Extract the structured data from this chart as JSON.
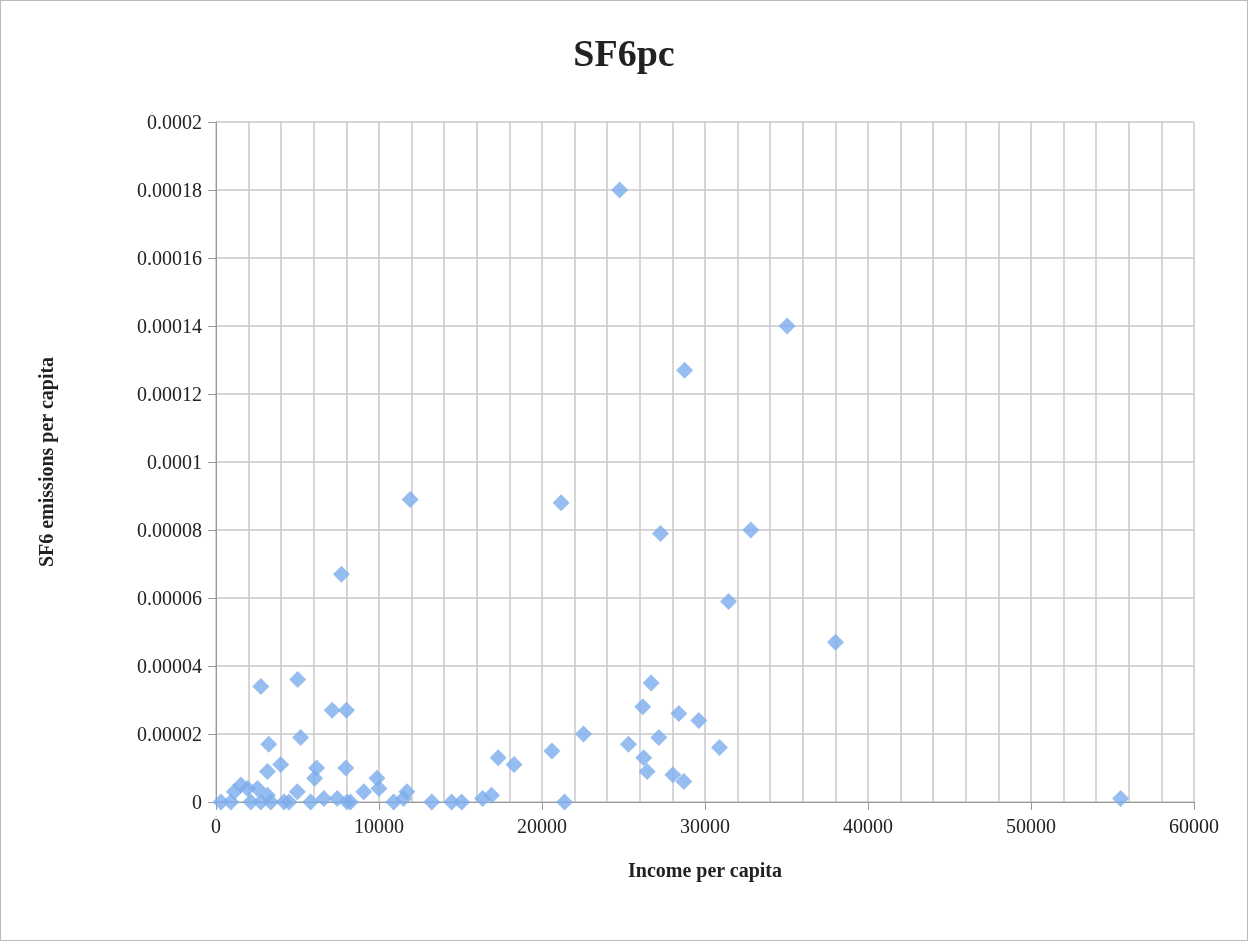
{
  "chart_data": {
    "type": "scatter",
    "title": "SF6pc",
    "xlabel": "Income per capita",
    "ylabel": "SF6 emissions per capita",
    "xlim": [
      0,
      60000
    ],
    "xticks": [
      0,
      {
        "value": 2000,
        "label": null
      },
      {
        "value": 4000,
        "label": null
      },
      {
        "value": 6000,
        "label": null
      },
      {
        "value": 8000,
        "label": null
      },
      10000,
      {
        "value": 12000,
        "label": null
      },
      {
        "value": 14000,
        "label": null
      },
      {
        "value": 16000,
        "label": null
      },
      {
        "value": 18000,
        "label": null
      },
      20000,
      {
        "value": 22000,
        "label": null
      },
      {
        "value": 24000,
        "label": null
      },
      {
        "value": 26000,
        "label": null
      },
      {
        "value": 28000,
        "label": null
      },
      30000,
      {
        "value": 32000,
        "label": null
      },
      {
        "value": 34000,
        "label": null
      },
      {
        "value": 36000,
        "label": null
      },
      {
        "value": 38000,
        "label": null
      },
      40000,
      {
        "value": 42000,
        "label": null
      },
      {
        "value": 44000,
        "label": null
      },
      {
        "value": 46000,
        "label": null
      },
      {
        "value": 48000,
        "label": null
      },
      50000,
      {
        "value": 52000,
        "label": null
      },
      {
        "value": 54000,
        "label": null
      },
      {
        "value": 56000,
        "label": null
      },
      {
        "value": 58000,
        "label": null
      },
      60000
    ],
    "ylim": [
      0,
      0.0002
    ],
    "yticks": [
      0,
      {
        "value": 2e-05,
        "label": "0.00002"
      },
      {
        "value": 4e-05,
        "label": "0.00004"
      },
      {
        "value": 6e-05,
        "label": "0.00006"
      },
      {
        "value": 8e-05,
        "label": "0.00008"
      },
      0.0001,
      0.00012,
      0.00014,
      0.00016,
      0.00018,
      0.0002
    ],
    "grid": true,
    "marker": "diamond",
    "series": [
      {
        "color": "#7cacec",
        "x": [
          24766,
          35040,
          28750,
          11914,
          7695,
          21172,
          27266,
          32812,
          31445,
          38008,
          55500,
          2749,
          5010,
          7128,
          8004,
          5193,
          3238,
          3971,
          3157,
          6171,
          6049,
          7963,
          9878,
          10000,
          17312,
          18289,
          20611,
          22546,
          21385,
          16904,
          16354,
          15071,
          14460,
          13238,
          11711,
          11507,
          10896,
          305,
          916,
          1527,
          1935,
          2546,
          3157,
          4175,
          4990,
          5804,
          6619,
          7434,
          8248,
          9063,
          1120,
          2138,
          2749,
          3360,
          4480,
          8045,
          26694,
          26182,
          28393,
          29621,
          25302,
          27165,
          30890,
          26244,
          26448,
          28024,
          28700
        ],
        "values": [
          0.00018,
          0.00014,
          0.000127,
          8.9e-05,
          6.7e-05,
          8.8e-05,
          7.9e-05,
          8e-05,
          5.9e-05,
          4.7e-05,
          1e-06,
          3.4e-05,
          3.6e-05,
          2.7e-05,
          2.7e-05,
          1.9e-05,
          1.7e-05,
          1.1e-05,
          9e-06,
          1e-05,
          7e-06,
          1e-05,
          7e-06,
          4e-06,
          1.3e-05,
          1.1e-05,
          1.5e-05,
          2e-05,
          0,
          2e-06,
          1e-06,
          0,
          0,
          0,
          3e-06,
          1e-06,
          0,
          0,
          0,
          5e-06,
          4e-06,
          4e-06,
          2e-06,
          0,
          3e-06,
          0,
          1e-06,
          1e-06,
          0,
          3e-06,
          3e-06,
          0,
          0,
          0,
          0,
          0,
          3.5e-05,
          2.8e-05,
          2.6e-05,
          2.4e-05,
          1.7e-05,
          1.9e-05,
          1.6e-05,
          1.3e-05,
          9e-06,
          8e-06,
          6e-06
        ]
      }
    ]
  }
}
